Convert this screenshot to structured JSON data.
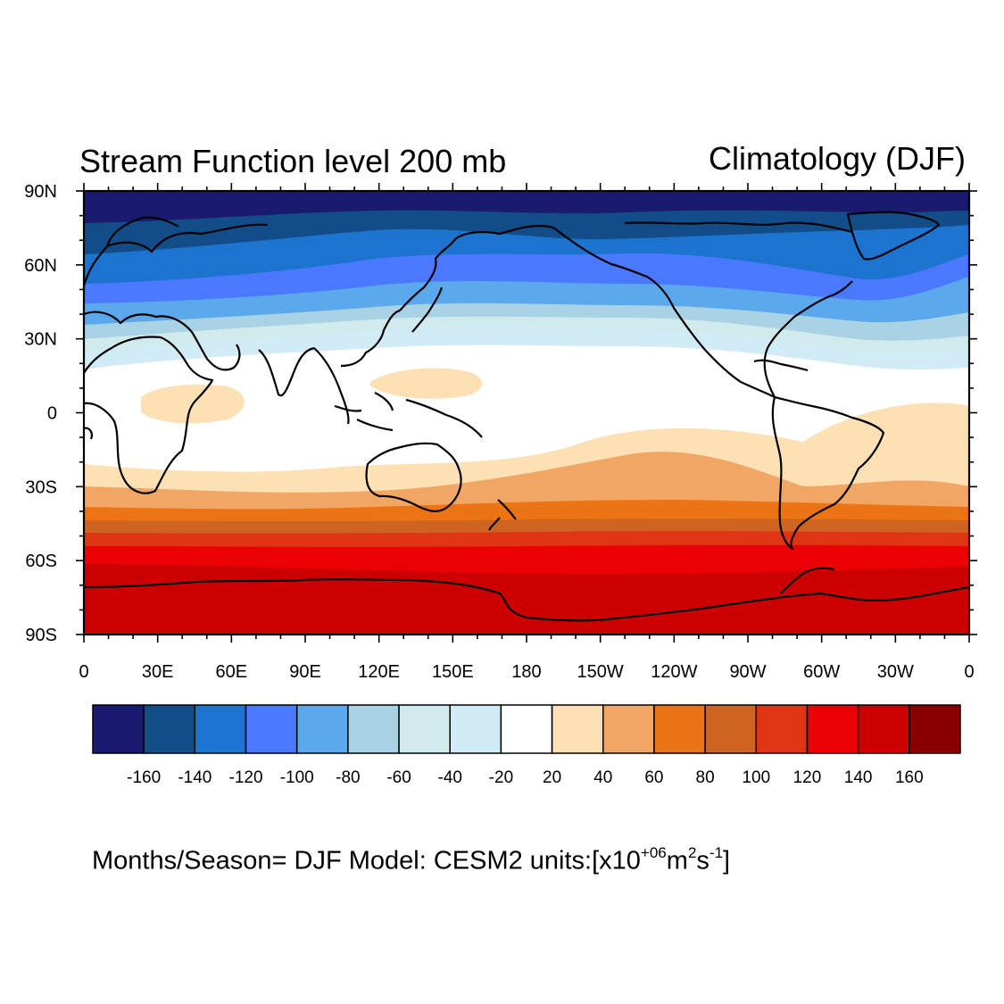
{
  "title_left": "Stream Function level 200 mb",
  "title_right": "Climatology  (DJF)",
  "footer": {
    "prefix": "Months/Season= DJF Model: CESM2  units:[x10",
    "exp": "+06",
    "m": "m",
    "m_exp": "2",
    "s": "s",
    "s_exp": "-1",
    "close": "]"
  },
  "map": {
    "lat_labels": [
      "90N",
      "60N",
      "30N",
      "0",
      "30S",
      "60S",
      "90S"
    ],
    "lon_labels": [
      "0",
      "30E",
      "60E",
      "90E",
      "120E",
      "150E",
      "180",
      "150W",
      "120W",
      "90W",
      "60W",
      "30W",
      "0"
    ]
  },
  "colorbar": {
    "colors": [
      "#1a1a6e",
      "#124d8a",
      "#1c74cf",
      "#4a78ff",
      "#5ba9ec",
      "#a9d3e5",
      "#d1eaec",
      "#d2ecf7",
      "#ffffff",
      "#fde1b4",
      "#f2a664",
      "#ec7414",
      "#cf6420",
      "#e03514",
      "#eb0003",
      "#cc0000",
      "#8a0000"
    ],
    "labels": [
      "-160",
      "-140",
      "-120",
      "-100",
      "-80",
      "-60",
      "-40",
      "-20",
      "20",
      "40",
      "60",
      "80",
      "100",
      "120",
      "140",
      "160"
    ]
  }
}
